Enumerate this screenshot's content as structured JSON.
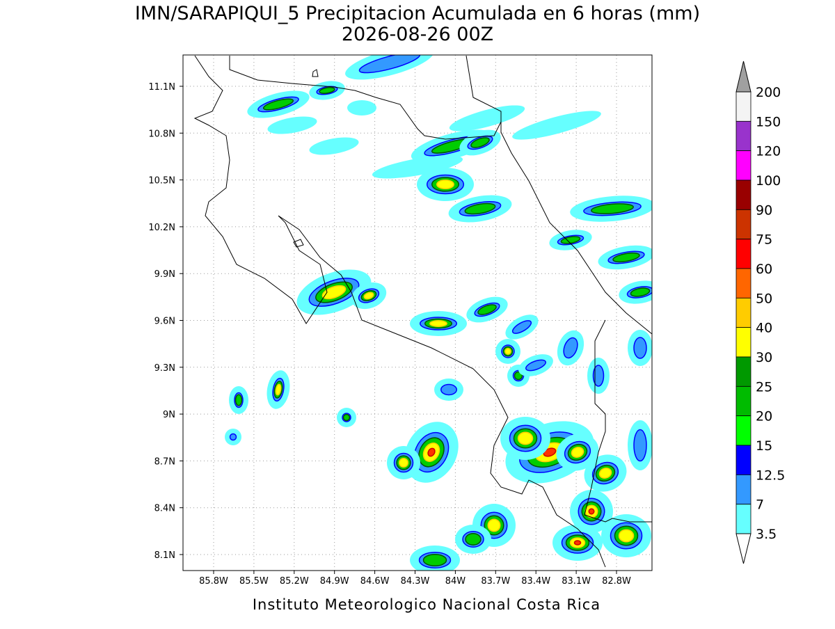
{
  "title": "IMN/SARAPIQUI_5 Precipitacion Acumulada en 6 horas (mm)",
  "subtitle": "2026-08-26 00Z",
  "map": {
    "lat_labels": [
      "11.1N",
      "10.8N",
      "10.5N",
      "10.2N",
      "9.9N",
      "9.6N",
      "9.3N",
      "9N",
      "8.7N",
      "8.4N",
      "8.1N"
    ],
    "lon_labels": [
      "85.8W",
      "85.5W",
      "85.2W",
      "84.9W",
      "84.6W",
      "84.3W",
      "84W",
      "83.7W",
      "83.4W",
      "83.1W",
      "82.8W"
    ]
  },
  "colorbar": {
    "labels": [
      "200",
      "150",
      "120",
      "100",
      "90",
      "75",
      "60",
      "50",
      "40",
      "30",
      "25",
      "20",
      "15",
      "12.5",
      "7",
      "3.5"
    ],
    "colors": [
      "#f4f4f4",
      "#9933cc",
      "#ff00ff",
      "#990000",
      "#cc3300",
      "#ff0000",
      "#ff6600",
      "#ffcc00",
      "#ffff00",
      "#009900",
      "#00bb00",
      "#00ff00",
      "#0000ff",
      "#3399ff",
      "#66ffff"
    ],
    "over_color": "#a0a0a0",
    "under_color": "#ffffff"
  },
  "footer": "Instituto Meteorologico Nacional Costa Rica"
}
